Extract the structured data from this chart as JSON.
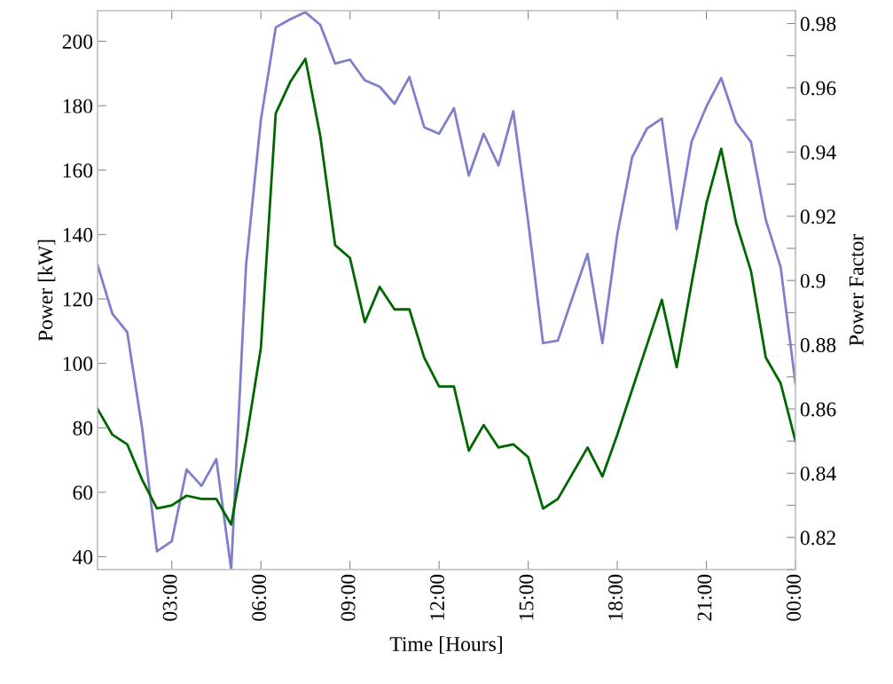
{
  "chart_data": {
    "type": "line",
    "xlabel": "Time [Hours]",
    "ylabel": "Power [kW]",
    "y2label": "Power Factor",
    "x": [
      0.5,
      1,
      1.5,
      2,
      2.5,
      3,
      3.5,
      4,
      4.5,
      5,
      5.5,
      6,
      6.5,
      7,
      7.5,
      8,
      8.5,
      9,
      9.5,
      10,
      10.5,
      11,
      11.5,
      12,
      12.5,
      13,
      13.5,
      14,
      14.5,
      15,
      15.5,
      16,
      16.5,
      17,
      17.5,
      18,
      18.5,
      19,
      19.5,
      20,
      20.5,
      21,
      21.5,
      22,
      22.5,
      23,
      23.5,
      24
    ],
    "series": [
      {
        "color": "#7f7fcc",
        "values": [
          130.6,
          115.4,
          109.7,
          80,
          41.7,
          44.8,
          67.1,
          62.0,
          70.3,
          36,
          130.3,
          175.6,
          204.3,
          206.9,
          209,
          205.1,
          193.1,
          194.3,
          187.9,
          185.9,
          180.6,
          188.9,
          173.3,
          171.3,
          179.2,
          158.3,
          171.3,
          161.5,
          178.3,
          144,
          106.3,
          107.1,
          120.7,
          134.0,
          106.3,
          140.0,
          164.0,
          172.9,
          176.0,
          141.7,
          168.8,
          179.7,
          188.6,
          174.8,
          168.8,
          144.6,
          129.9,
          93.7
        ]
      },
      {
        "color": "#006600",
        "axis": "y2",
        "values": [
          0.86,
          0.852,
          0.849,
          0.838,
          0.829,
          0.83,
          0.833,
          0.832,
          0.832,
          0.824,
          0.85,
          0.879,
          0.952,
          0.962,
          0.969,
          0.945,
          0.911,
          0.907,
          0.887,
          0.898,
          0.891,
          0.891,
          0.876,
          0.867,
          0.867,
          0.847,
          0.855,
          0.848,
          0.849,
          0.845,
          0.829,
          0.832,
          0.84,
          0.848,
          0.839,
          0.852,
          0.866,
          0.88,
          0.894,
          0.873,
          0.899,
          0.924,
          0.941,
          0.918,
          0.903,
          0.876,
          0.868,
          0.85
        ]
      }
    ],
    "xlim": [
      0.5,
      24
    ],
    "xticks": [
      {
        "value": 3,
        "label": "03:00"
      },
      {
        "value": 6,
        "label": "06:00"
      },
      {
        "value": 9,
        "label": "09:00"
      },
      {
        "value": 12,
        "label": "12:00"
      },
      {
        "value": 15,
        "label": "15:00"
      },
      {
        "value": 18,
        "label": "18:00"
      },
      {
        "value": 21,
        "label": "21:00"
      },
      {
        "value": 24,
        "label": "00:00"
      }
    ],
    "ylim": [
      36,
      209.5
    ],
    "yticks": [
      40,
      60,
      80,
      100,
      120,
      140,
      160,
      180,
      200
    ],
    "y2lim": [
      0.81,
      0.984
    ],
    "y2ticks": [
      {
        "value": 0.81,
        "label": null
      },
      0.82,
      {
        "value": 0.83,
        "label": null
      },
      0.84,
      {
        "value": 0.85,
        "label": null
      },
      0.86,
      {
        "value": 0.87,
        "label": null
      },
      0.88,
      {
        "value": 0.89,
        "label": null
      },
      0.9,
      {
        "value": 0.91,
        "label": null
      },
      0.92,
      {
        "value": 0.93,
        "label": null
      },
      0.94,
      {
        "value": 0.95,
        "label": null
      },
      0.96,
      {
        "value": 0.97,
        "label": null
      },
      0.98
    ],
    "marker": "none",
    "line_style": "solid"
  }
}
